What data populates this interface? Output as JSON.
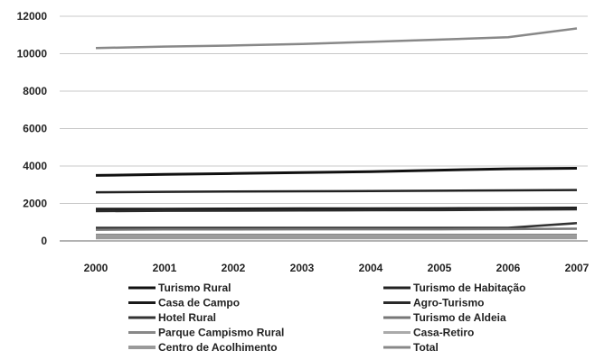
{
  "chart_data": {
    "type": "line",
    "title": "",
    "xlabel": "",
    "ylabel": "",
    "x": [
      "2000",
      "2001",
      "2002",
      "2003",
      "2004",
      "2005",
      "2006",
      "2007"
    ],
    "ylim": [
      0,
      12000
    ],
    "yticks": [
      "0",
      "2000",
      "4000",
      "6000",
      "8000",
      "10000",
      "12000"
    ],
    "grid": "horizontal",
    "legend_position": "bottom",
    "series": [
      {
        "name": "Turismo Rural",
        "color": "#111111",
        "values": [
          3500,
          3550,
          3600,
          3650,
          3700,
          3780,
          3850,
          3880
        ]
      },
      {
        "name": "Turismo de Habitação",
        "color": "#222222",
        "values": [
          2600,
          2620,
          2640,
          2650,
          2660,
          2680,
          2700,
          2720
        ]
      },
      {
        "name": "Casa de Campo",
        "color": "#1a1a1a",
        "values": [
          1700,
          1700,
          1710,
          1720,
          1720,
          1730,
          1740,
          1760
        ]
      },
      {
        "name": "Agro-Turismo",
        "color": "#2a2a2a",
        "values": [
          1600,
          1620,
          1630,
          1640,
          1650,
          1660,
          1680,
          1700
        ]
      },
      {
        "name": "Hotel Rural",
        "color": "#333333",
        "values": [
          700,
          700,
          700,
          700,
          700,
          700,
          700,
          950
        ]
      },
      {
        "name": "Turismo de Aldeia",
        "color": "#777777",
        "values": [
          600,
          610,
          610,
          620,
          620,
          620,
          630,
          650
        ]
      },
      {
        "name": "Parque Campismo Rural",
        "color": "#888888",
        "values": [
          330,
          330,
          330,
          330,
          330,
          330,
          330,
          330
        ]
      },
      {
        "name": "Casa-Retiro",
        "color": "#aaaaaa",
        "values": [
          250,
          250,
          250,
          250,
          250,
          250,
          250,
          250
        ]
      },
      {
        "name": "Centro de Acolhimento",
        "color": "#9a9a9a",
        "values": [
          180,
          180,
          180,
          180,
          180,
          180,
          180,
          180
        ]
      },
      {
        "name": "Total",
        "color": "#888888",
        "values": [
          10300,
          10380,
          10440,
          10520,
          10630,
          10750,
          10880,
          11350
        ]
      }
    ]
  }
}
